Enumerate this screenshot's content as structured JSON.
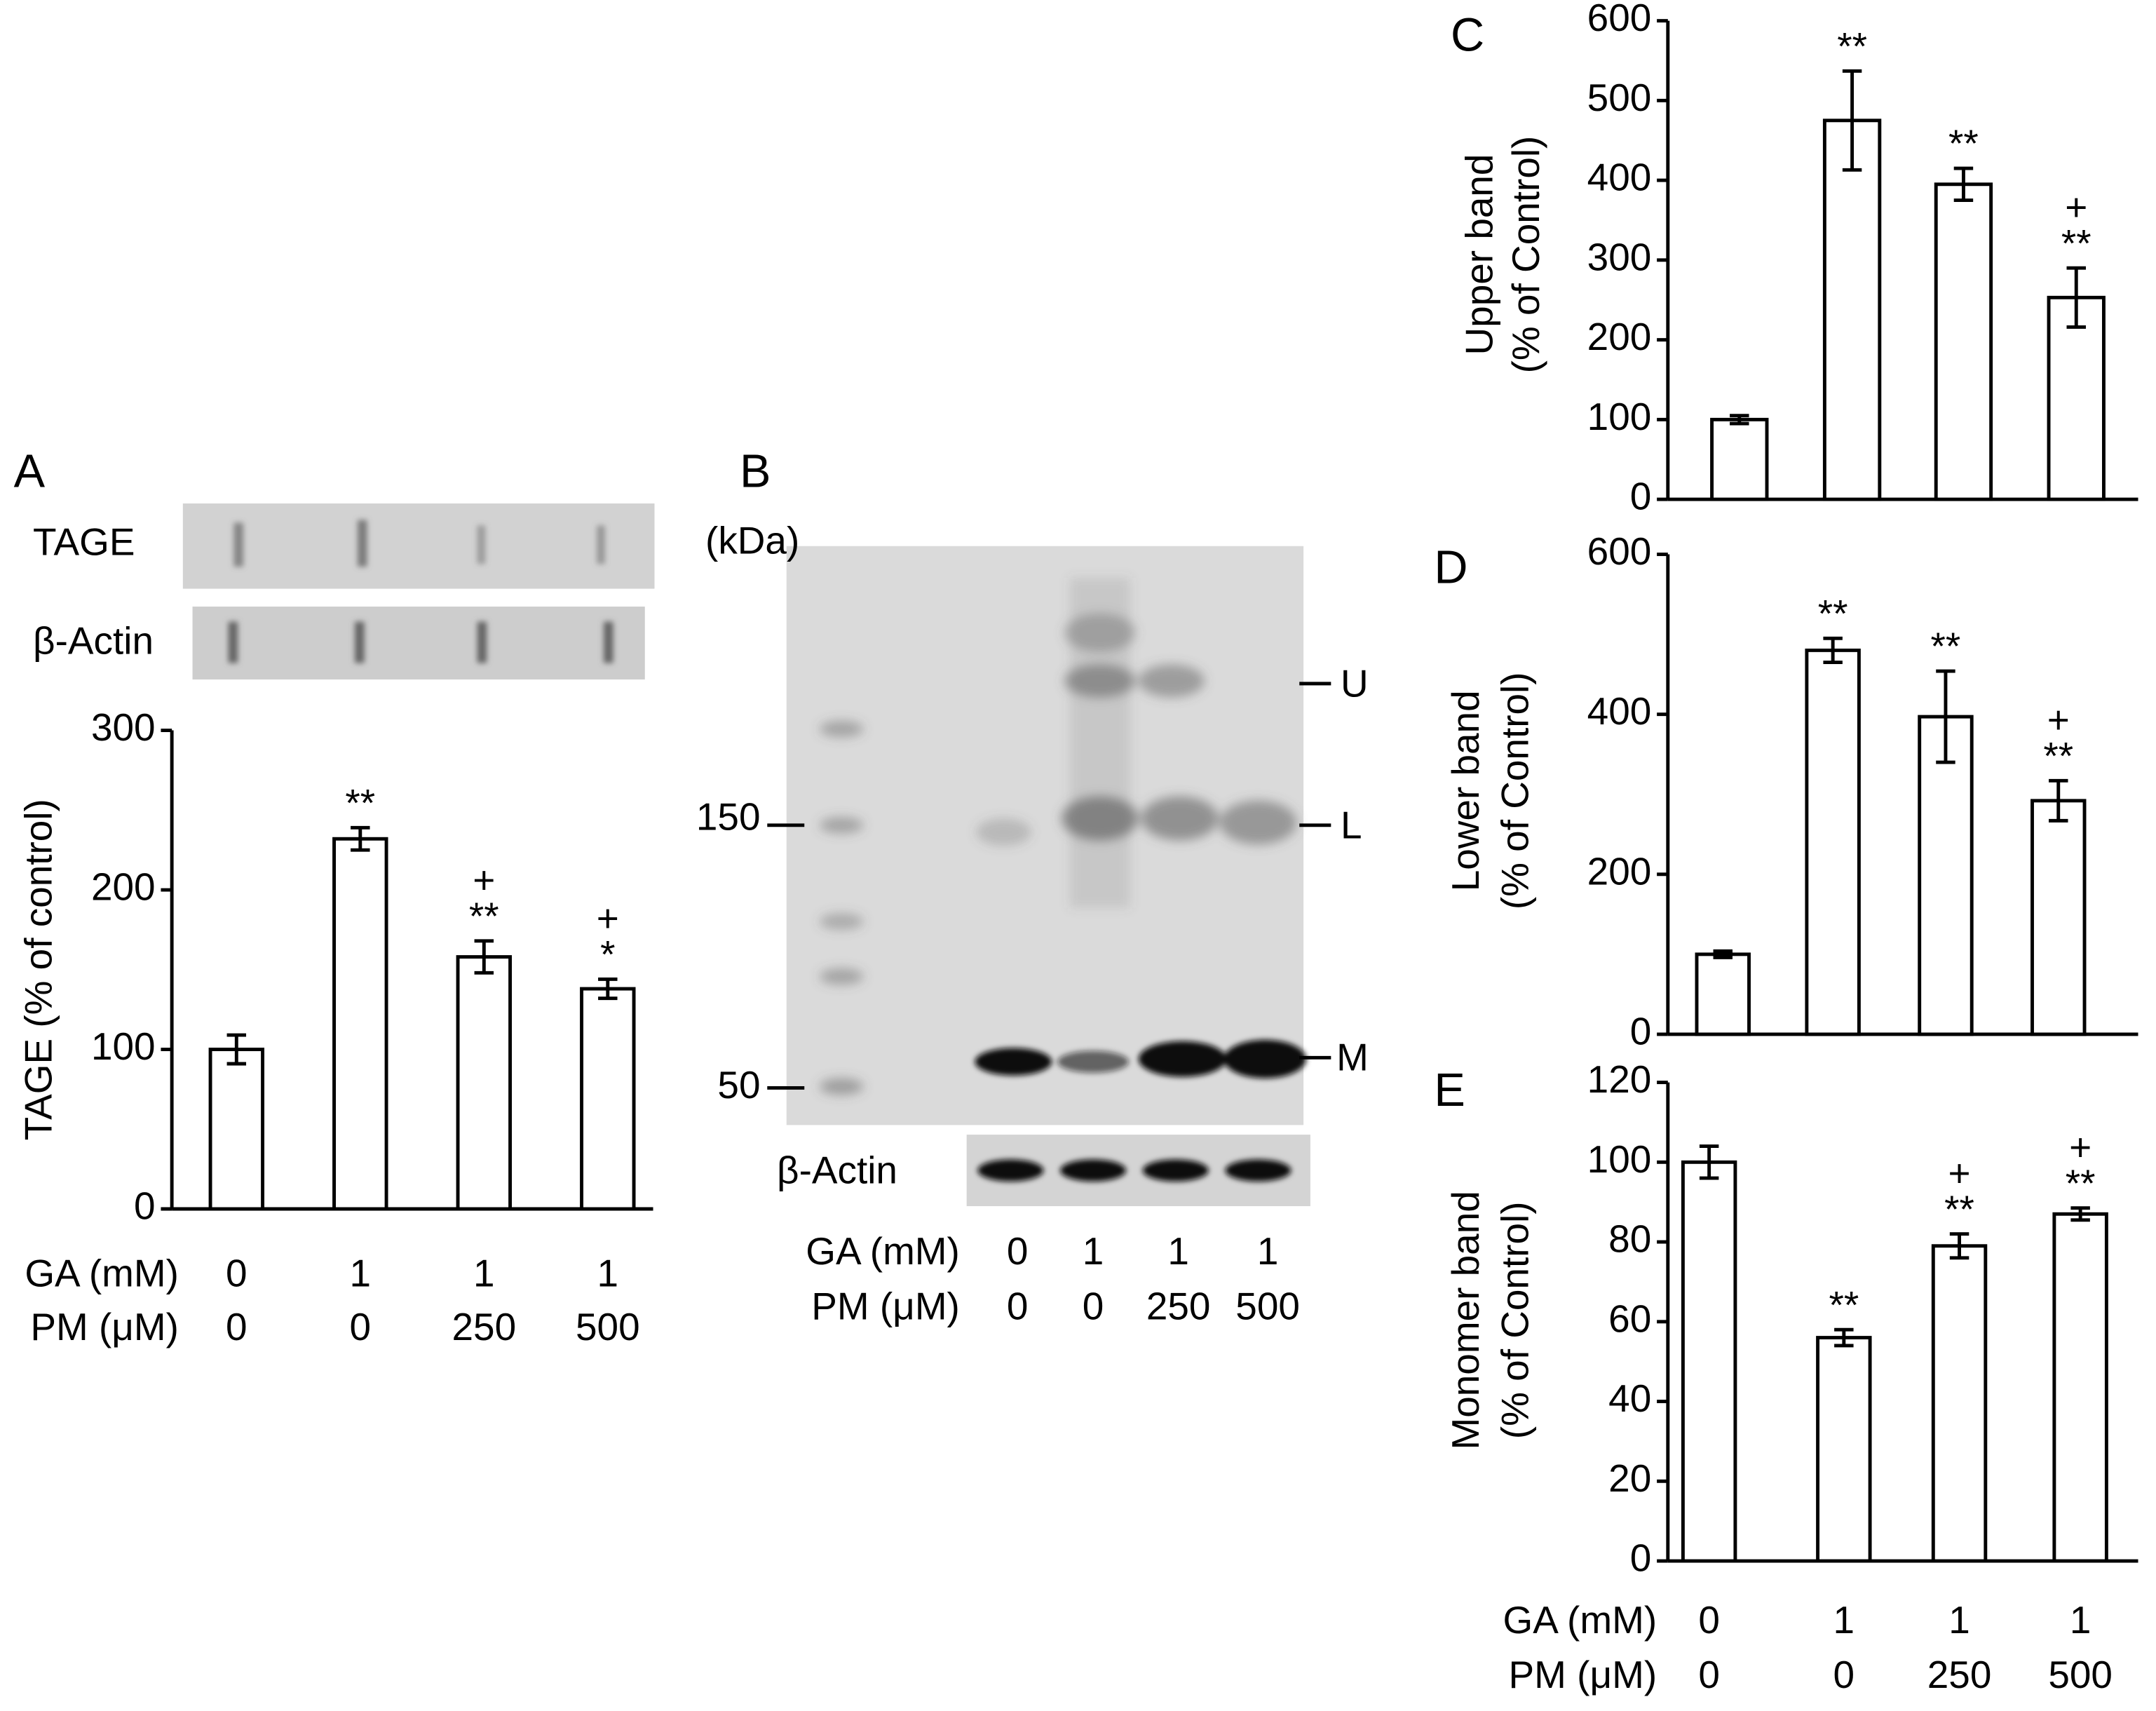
{
  "chart_data": [
    {
      "type": "bar",
      "panel": "A",
      "ylabel": "TAGE (% of control)",
      "ylim": [
        0,
        300
      ],
      "yticks": [
        0,
        100,
        200,
        300
      ],
      "series": [
        {
          "color": "#ffffff",
          "values": [
            100,
            232,
            158,
            138
          ],
          "errors": [
            9,
            7,
            10,
            6
          ]
        }
      ],
      "annotations": [
        [],
        [
          "**"
        ],
        [
          "+",
          "**"
        ],
        [
          "+",
          "*"
        ]
      ],
      "strips": [
        "TAGE",
        "β-Actin"
      ],
      "conditions": [
        {
          "label": "GA (mM)",
          "values": [
            "0",
            "1",
            "1",
            "1"
          ]
        },
        {
          "label": "PM (μM)",
          "values": [
            "0",
            "0",
            "250",
            "500"
          ]
        }
      ]
    },
    {
      "type": "bar",
      "panel": "C",
      "ylabel": [
        "Upper band",
        "(% of Control)"
      ],
      "ylim": [
        0,
        600
      ],
      "yticks": [
        0,
        100,
        200,
        300,
        400,
        500,
        600
      ],
      "series": [
        {
          "color": "#ffffff",
          "values": [
            100,
            475,
            395,
            253
          ],
          "errors": [
            5,
            62,
            20,
            37
          ]
        }
      ],
      "annotations": [
        [],
        [
          "**"
        ],
        [
          "**"
        ],
        [
          "+",
          "**"
        ]
      ]
    },
    {
      "type": "bar",
      "panel": "D",
      "ylabel": [
        "Lower band",
        "(% of Control)"
      ],
      "ylim": [
        0,
        600
      ],
      "yticks": [
        0,
        200,
        400,
        600
      ],
      "series": [
        {
          "color": "#ffffff",
          "values": [
            100,
            480,
            397,
            292
          ],
          "errors": [
            4,
            15,
            57,
            25
          ]
        }
      ],
      "annotations": [
        [],
        [
          "**"
        ],
        [
          "**"
        ],
        [
          "+",
          "**"
        ]
      ]
    },
    {
      "type": "bar",
      "panel": "E",
      "ylabel": [
        "Monomer band",
        "(% of Control)"
      ],
      "ylim": [
        0,
        120
      ],
      "yticks": [
        0,
        20,
        40,
        60,
        80,
        100,
        120
      ],
      "series": [
        {
          "color": "#ffffff",
          "values": [
            100,
            56,
            79,
            87
          ],
          "errors": [
            4,
            2,
            3,
            1.5
          ]
        }
      ],
      "annotations": [
        [],
        [
          "**"
        ],
        [
          "+",
          "**"
        ],
        [
          "+",
          "**"
        ]
      ],
      "conditions": [
        {
          "label": "GA (mM)",
          "values": [
            "0",
            "1",
            "1",
            "1"
          ]
        },
        {
          "label": "PM (μM)",
          "values": [
            "0",
            "0",
            "250",
            "500"
          ]
        }
      ]
    }
  ],
  "blot": {
    "panel": "B",
    "unit": "(kDa)",
    "markers": [
      "150",
      "50"
    ],
    "bands": [
      "U",
      "L",
      "M"
    ],
    "loading": "β-Actin",
    "conditions": [
      {
        "label": "GA (mM)",
        "values": [
          "0",
          "1",
          "1",
          "1"
        ]
      },
      {
        "label": "PM (μM)",
        "values": [
          "0",
          "0",
          "250",
          "500"
        ]
      }
    ]
  }
}
